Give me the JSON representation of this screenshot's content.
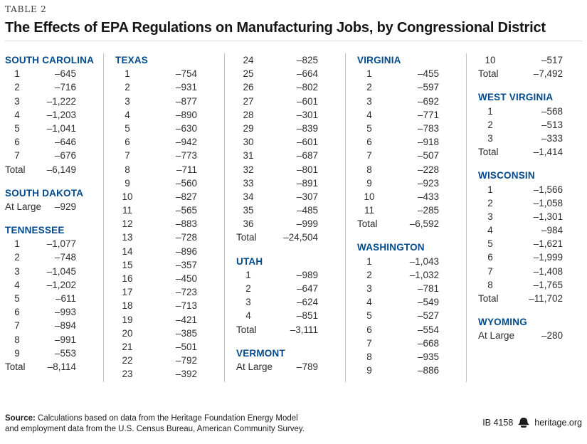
{
  "page": {
    "kicker": "TABLE 2",
    "title": "The Effects of EPA Regulations on Manufacturing Jobs, by Congressional District"
  },
  "colors": {
    "accent_blue": "#004A8C",
    "divider_gray": "#c4c4c4",
    "text": "#2e2e2e"
  },
  "table": {
    "columns": [
      {
        "blocks": [
          {
            "state": "SOUTH CAROLINA",
            "rows": [
              [
                "1",
                "–645"
              ],
              [
                "2",
                "–716"
              ],
              [
                "3",
                "–1,222"
              ],
              [
                "4",
                "–1,203"
              ],
              [
                "5",
                "–1,041"
              ],
              [
                "6",
                "–646"
              ],
              [
                "7",
                "–676"
              ],
              [
                "Total",
                "–6,149"
              ]
            ]
          },
          {
            "state": "SOUTH DAKOTA",
            "rows": [
              [
                "At Large",
                "–929"
              ]
            ]
          },
          {
            "state": "TENNESSEE",
            "rows": [
              [
                "1",
                "–1,077"
              ],
              [
                "2",
                "–748"
              ],
              [
                "3",
                "–1,045"
              ],
              [
                "4",
                "–1,202"
              ],
              [
                "5",
                "–611"
              ],
              [
                "6",
                "–993"
              ],
              [
                "7",
                "–894"
              ],
              [
                "8",
                "–991"
              ],
              [
                "9",
                "–553"
              ],
              [
                "Total",
                "–8,114"
              ]
            ]
          }
        ]
      },
      {
        "blocks": [
          {
            "state": "TEXAS",
            "rows": [
              [
                "1",
                "–754"
              ],
              [
                "2",
                "–931"
              ],
              [
                "3",
                "–877"
              ],
              [
                "4",
                "–890"
              ],
              [
                "5",
                "–630"
              ],
              [
                "6",
                "–942"
              ],
              [
                "7",
                "–773"
              ],
              [
                "8",
                "–711"
              ],
              [
                "9",
                "–560"
              ],
              [
                "10",
                "–827"
              ],
              [
                "11",
                "–565"
              ],
              [
                "12",
                "–883"
              ],
              [
                "13",
                "–728"
              ],
              [
                "14",
                "–896"
              ],
              [
                "15",
                "–357"
              ],
              [
                "16",
                "–450"
              ],
              [
                "17",
                "–723"
              ],
              [
                "18",
                "–713"
              ],
              [
                "19",
                "–421"
              ],
              [
                "20",
                "–385"
              ],
              [
                "21",
                "–501"
              ],
              [
                "22",
                "–792"
              ],
              [
                "23",
                "–392"
              ]
            ]
          }
        ]
      },
      {
        "blocks": [
          {
            "state": null,
            "rows": [
              [
                "24",
                "–825"
              ],
              [
                "25",
                "–664"
              ],
              [
                "26",
                "–802"
              ],
              [
                "27",
                "–601"
              ],
              [
                "28",
                "–301"
              ],
              [
                "29",
                "–839"
              ],
              [
                "30",
                "–601"
              ],
              [
                "31",
                "–687"
              ],
              [
                "32",
                "–801"
              ],
              [
                "33",
                "–891"
              ],
              [
                "34",
                "–307"
              ],
              [
                "35",
                "–485"
              ],
              [
                "36",
                "–999"
              ],
              [
                "Total",
                "–24,504"
              ]
            ]
          },
          {
            "state": "UTAH",
            "rows": [
              [
                "1",
                "–989"
              ],
              [
                "2",
                "–647"
              ],
              [
                "3",
                "–624"
              ],
              [
                "4",
                "–851"
              ],
              [
                "Total",
                "–3,111"
              ]
            ]
          },
          {
            "state": "VERMONT",
            "rows": [
              [
                "At Large",
                "–789"
              ]
            ]
          }
        ]
      },
      {
        "blocks": [
          {
            "state": "VIRGINIA",
            "rows": [
              [
                "1",
                "–455"
              ],
              [
                "2",
                "–597"
              ],
              [
                "3",
                "–692"
              ],
              [
                "4",
                "–771"
              ],
              [
                "5",
                "–783"
              ],
              [
                "6",
                "–918"
              ],
              [
                "7",
                "–507"
              ],
              [
                "8",
                "–228"
              ],
              [
                "9",
                "–923"
              ],
              [
                "10",
                "–433"
              ],
              [
                "11",
                "–285"
              ],
              [
                "Total",
                "–6,592"
              ]
            ]
          },
          {
            "state": "WASHINGTON",
            "rows": [
              [
                "1",
                "–1,043"
              ],
              [
                "2",
                "–1,032"
              ],
              [
                "3",
                "–781"
              ],
              [
                "4",
                "–549"
              ],
              [
                "5",
                "–527"
              ],
              [
                "6",
                "–554"
              ],
              [
                "7",
                "–668"
              ],
              [
                "8",
                "–935"
              ],
              [
                "9",
                "–886"
              ]
            ]
          }
        ]
      },
      {
        "blocks": [
          {
            "state": null,
            "rows": [
              [
                "10",
                "–517"
              ],
              [
                "Total",
                "–7,492"
              ]
            ]
          },
          {
            "state": "WEST VIRGINIA",
            "rows": [
              [
                "1",
                "–568"
              ],
              [
                "2",
                "–513"
              ],
              [
                "3",
                "–333"
              ],
              [
                "Total",
                "–1,414"
              ]
            ]
          },
          {
            "state": "WISCONSIN",
            "rows": [
              [
                "1",
                "–1,566"
              ],
              [
                "2",
                "–1,058"
              ],
              [
                "3",
                "–1,301"
              ],
              [
                "4",
                "–984"
              ],
              [
                "5",
                "–1,621"
              ],
              [
                "6",
                "–1,999"
              ],
              [
                "7",
                "–1,408"
              ],
              [
                "8",
                "–1,765"
              ],
              [
                "Total",
                "–11,702"
              ]
            ]
          },
          {
            "state": "WYOMING",
            "rows": [
              [
                "At Large",
                "–280"
              ]
            ]
          }
        ]
      }
    ]
  },
  "footer": {
    "source_label": "Source:",
    "source_text": " Calculations based on data from the Heritage Foundation Energy Model and employment data from the U.S. Census Bureau, American Community Survey.",
    "report_id": "IB 4158",
    "bell_icon": "heritage-bell-icon",
    "site": "heritage.org"
  }
}
